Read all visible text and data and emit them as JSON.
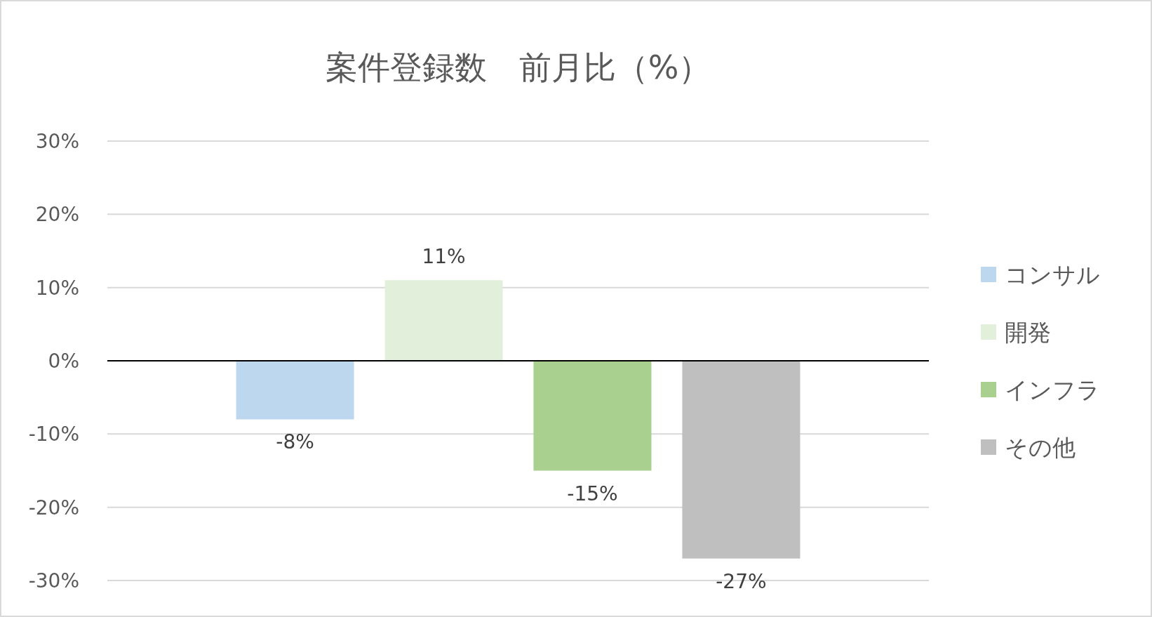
{
  "chart_data": {
    "type": "bar",
    "title": "案件登録数　前月比（%）",
    "categories": [
      null
    ],
    "series": [
      {
        "name": "コンサル",
        "color": "#bdd7ee",
        "values": [
          -8
        ],
        "value_labels": [
          "-8%"
        ]
      },
      {
        "name": "開発",
        "color": "#e2efda",
        "values": [
          11
        ],
        "value_labels": [
          "11%"
        ]
      },
      {
        "name": "インフラ",
        "color": "#a9d08e",
        "values": [
          -15
        ],
        "value_labels": [
          "-15%"
        ]
      },
      {
        "name": "その他",
        "color": "#bfbfbf",
        "values": [
          -27
        ],
        "value_labels": [
          "-27%"
        ]
      }
    ],
    "ylim": [
      -30,
      30
    ],
    "yticks": [
      {
        "value": -30,
        "label": "-30%"
      },
      {
        "value": -20,
        "label": "-20%"
      },
      {
        "value": -10,
        "label": "-10%"
      },
      {
        "value": 0,
        "label": "0%"
      },
      {
        "value": 10,
        "label": "10%"
      },
      {
        "value": 20,
        "label": "20%"
      },
      {
        "value": 30,
        "label": "30%"
      }
    ],
    "grid": "y",
    "legend": "right"
  }
}
